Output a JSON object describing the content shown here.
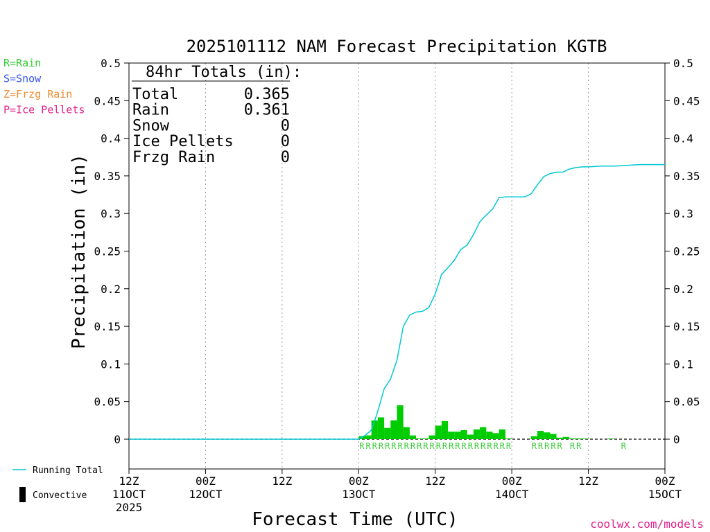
{
  "chart_data": {
    "type": "bar",
    "title": "2025101112 NAM Forecast Precipitation KGTB",
    "ylabel": "Precipitation (in)",
    "xlabel": "Forecast Time (UTC)",
    "ylim": [
      -0.04,
      0.5
    ],
    "xlim": [
      0,
      84
    ],
    "yticks": [
      0,
      0.05,
      0.1,
      0.15,
      0.2,
      0.25,
      0.3,
      0.35,
      0.4,
      0.45,
      0.5
    ],
    "ytick_labels": [
      "0",
      "0.05",
      "0.1",
      "0.15",
      "0.2",
      "0.25",
      "0.3",
      "0.35",
      "0.4",
      "0.45",
      "0.5"
    ],
    "xticks": [
      {
        "x": 0,
        "lines": [
          "12Z",
          "11OCT",
          "2025"
        ]
      },
      {
        "x": 12,
        "lines": [
          "00Z",
          "12OCT"
        ]
      },
      {
        "x": 24,
        "lines": [
          "12Z"
        ]
      },
      {
        "x": 36,
        "lines": [
          "00Z",
          "13OCT"
        ]
      },
      {
        "x": 48,
        "lines": [
          "12Z"
        ]
      },
      {
        "x": 60,
        "lines": [
          "00Z",
          "14OCT"
        ]
      },
      {
        "x": 72,
        "lines": [
          "12Z"
        ]
      },
      {
        "x": 84,
        "lines": [
          "00Z",
          "15OCT"
        ]
      }
    ],
    "precip_type_legend": [
      {
        "label": "R=Rain",
        "color": "#33cc33"
      },
      {
        "label": "S=Snow",
        "color": "#3355ee"
      },
      {
        "label": "Z=Frzg Rain",
        "color": "#f08a30"
      },
      {
        "label": "P=Ice Pellets",
        "color": "#e0208a"
      }
    ],
    "totals_header": "84hr Totals (in):",
    "totals": [
      {
        "label": "Total",
        "value": "0.365"
      },
      {
        "label": "Rain",
        "value": "0.361"
      },
      {
        "label": "Snow",
        "value": "0"
      },
      {
        "label": "Ice Pellets",
        "value": "0"
      },
      {
        "label": "Frzg Rain",
        "value": "0"
      }
    ],
    "series": [
      {
        "name": "Hourly precipitation (Rain)",
        "color": "#00cc00",
        "bin_hours": 1,
        "x": [
          37,
          38,
          39,
          40,
          41,
          42,
          43,
          44,
          45,
          46,
          47,
          48,
          49,
          50,
          51,
          52,
          53,
          54,
          55,
          56,
          57,
          58,
          59,
          60,
          64,
          65,
          66,
          67,
          68,
          69,
          70,
          71,
          72,
          76
        ],
        "values": [
          0.004,
          0.005,
          0.025,
          0.029,
          0.015,
          0.025,
          0.045,
          0.016,
          0.005,
          0.001,
          0.001,
          0.005,
          0.018,
          0.024,
          0.01,
          0.01,
          0.012,
          0.006,
          0.013,
          0.016,
          0.01,
          0.008,
          0.013,
          0.001,
          0.004,
          0.011,
          0.009,
          0.007,
          0.002,
          0.003,
          0.001,
          0.001,
          0.0005,
          0.0005
        ]
      },
      {
        "name": "Running Total",
        "color": "#00c8d2",
        "x": [
          0,
          36,
          37,
          38,
          39,
          40,
          41,
          42,
          43,
          44,
          45,
          46,
          47,
          48,
          49,
          50,
          51,
          52,
          53,
          54,
          55,
          56,
          57,
          58,
          59,
          60,
          61,
          62,
          63,
          64,
          65,
          66,
          67,
          68,
          69,
          70,
          71,
          72,
          74,
          76,
          78,
          80,
          82,
          84
        ],
        "values": [
          0,
          0,
          0.005,
          0.012,
          0.037,
          0.067,
          0.08,
          0.105,
          0.15,
          0.165,
          0.169,
          0.17,
          0.175,
          0.193,
          0.219,
          0.228,
          0.238,
          0.252,
          0.258,
          0.272,
          0.289,
          0.298,
          0.306,
          0.321,
          0.322,
          0.322,
          0.322,
          0.322,
          0.326,
          0.338,
          0.349,
          0.353,
          0.355,
          0.355,
          0.359,
          0.361,
          0.362,
          0.362,
          0.363,
          0.363,
          0.364,
          0.365,
          0.365,
          0.365
        ]
      }
    ],
    "ptype_markers": {
      "text": "R",
      "color": "#33cc33",
      "x": [
        37,
        38,
        39,
        40,
        41,
        42,
        43,
        44,
        45,
        46,
        47,
        48,
        49,
        50,
        51,
        52,
        53,
        54,
        55,
        56,
        57,
        58,
        59,
        60,
        64,
        65,
        66,
        67,
        68,
        70,
        71,
        78
      ]
    },
    "line_legend": [
      {
        "label": "Running Total",
        "color": "#00c8d2",
        "kind": "line"
      },
      {
        "label": "Convective",
        "color": "#000000",
        "kind": "bar"
      }
    ],
    "credit": "coolwx.com/models"
  }
}
